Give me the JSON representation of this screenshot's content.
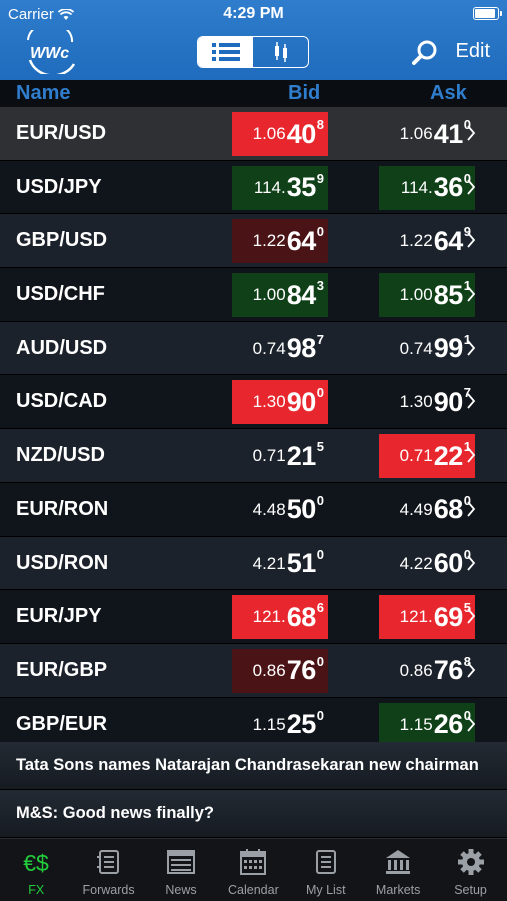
{
  "status_bar": {
    "carrier": "Carrier",
    "time": "4:29 PM"
  },
  "nav": {
    "logo_text": "WWc",
    "edit_label": "Edit",
    "view_toggle": [
      "list",
      "chart"
    ],
    "selected_view": "list"
  },
  "columns": {
    "name": "Name",
    "bid": "Bid",
    "ask": "Ask"
  },
  "quotes": [
    {
      "pair": "EUR/USD",
      "bid": {
        "small": "1.06",
        "big": "40",
        "pip": "8",
        "state": "down"
      },
      "ask": {
        "small": "1.06",
        "big": "41",
        "pip": "0",
        "state": "none"
      }
    },
    {
      "pair": "USD/JPY",
      "bid": {
        "small": "114.",
        "big": "35",
        "pip": "9",
        "state": "up"
      },
      "ask": {
        "small": "114.",
        "big": "36",
        "pip": "0",
        "state": "up"
      }
    },
    {
      "pair": "GBP/USD",
      "bid": {
        "small": "1.22",
        "big": "64",
        "pip": "0",
        "state": "down-fading"
      },
      "ask": {
        "small": "1.22",
        "big": "64",
        "pip": "9",
        "state": "none"
      }
    },
    {
      "pair": "USD/CHF",
      "bid": {
        "small": "1.00",
        "big": "84",
        "pip": "3",
        "state": "up"
      },
      "ask": {
        "small": "1.00",
        "big": "85",
        "pip": "1",
        "state": "up"
      }
    },
    {
      "pair": "AUD/USD",
      "bid": {
        "small": "0.74",
        "big": "98",
        "pip": "7",
        "state": "none"
      },
      "ask": {
        "small": "0.74",
        "big": "99",
        "pip": "1",
        "state": "none"
      }
    },
    {
      "pair": "USD/CAD",
      "bid": {
        "small": "1.30",
        "big": "90",
        "pip": "0",
        "state": "down"
      },
      "ask": {
        "small": "1.30",
        "big": "90",
        "pip": "7",
        "state": "none"
      }
    },
    {
      "pair": "NZD/USD",
      "bid": {
        "small": "0.71",
        "big": "21",
        "pip": "5",
        "state": "none"
      },
      "ask": {
        "small": "0.71",
        "big": "22",
        "pip": "1",
        "state": "down"
      }
    },
    {
      "pair": "EUR/RON",
      "bid": {
        "small": "4.48",
        "big": "50",
        "pip": "0",
        "state": "none"
      },
      "ask": {
        "small": "4.49",
        "big": "68",
        "pip": "0",
        "state": "none"
      }
    },
    {
      "pair": "USD/RON",
      "bid": {
        "small": "4.21",
        "big": "51",
        "pip": "0",
        "state": "none"
      },
      "ask": {
        "small": "4.22",
        "big": "60",
        "pip": "0",
        "state": "none"
      }
    },
    {
      "pair": "EUR/JPY",
      "bid": {
        "small": "121.",
        "big": "68",
        "pip": "6",
        "state": "down"
      },
      "ask": {
        "small": "121.",
        "big": "69",
        "pip": "5",
        "state": "down"
      }
    },
    {
      "pair": "EUR/GBP",
      "bid": {
        "small": "0.86",
        "big": "76",
        "pip": "0",
        "state": "down-fading"
      },
      "ask": {
        "small": "0.86",
        "big": "76",
        "pip": "8",
        "state": "none"
      }
    },
    {
      "pair": "GBP/EUR",
      "bid": {
        "small": "1.15",
        "big": "25",
        "pip": "0",
        "state": "none"
      },
      "ask": {
        "small": "1.15",
        "big": "26",
        "pip": "0",
        "state": "up"
      }
    }
  ],
  "news": [
    "Tata Sons names Natarajan Chandrasekaran new chairman",
    "M&S: Good news finally?"
  ],
  "tabs": [
    {
      "label": "FX",
      "icon": "fx-currency-icon",
      "active": true
    },
    {
      "label": "Forwards",
      "icon": "forwards-icon",
      "active": false
    },
    {
      "label": "News",
      "icon": "news-icon",
      "active": false
    },
    {
      "label": "Calendar",
      "icon": "calendar-icon",
      "active": false
    },
    {
      "label": "My List",
      "icon": "my-list-icon",
      "active": false
    },
    {
      "label": "Markets",
      "icon": "markets-icon",
      "active": false
    },
    {
      "label": "Setup",
      "icon": "gear-icon",
      "active": false
    }
  ],
  "colors": {
    "nav_bg": "#1f6bbd",
    "header_text": "#2f7dcc",
    "down": "#e8262d",
    "up": "#0f4018",
    "down_fading": "#4a1316",
    "active_tab": "#22cc3a"
  }
}
